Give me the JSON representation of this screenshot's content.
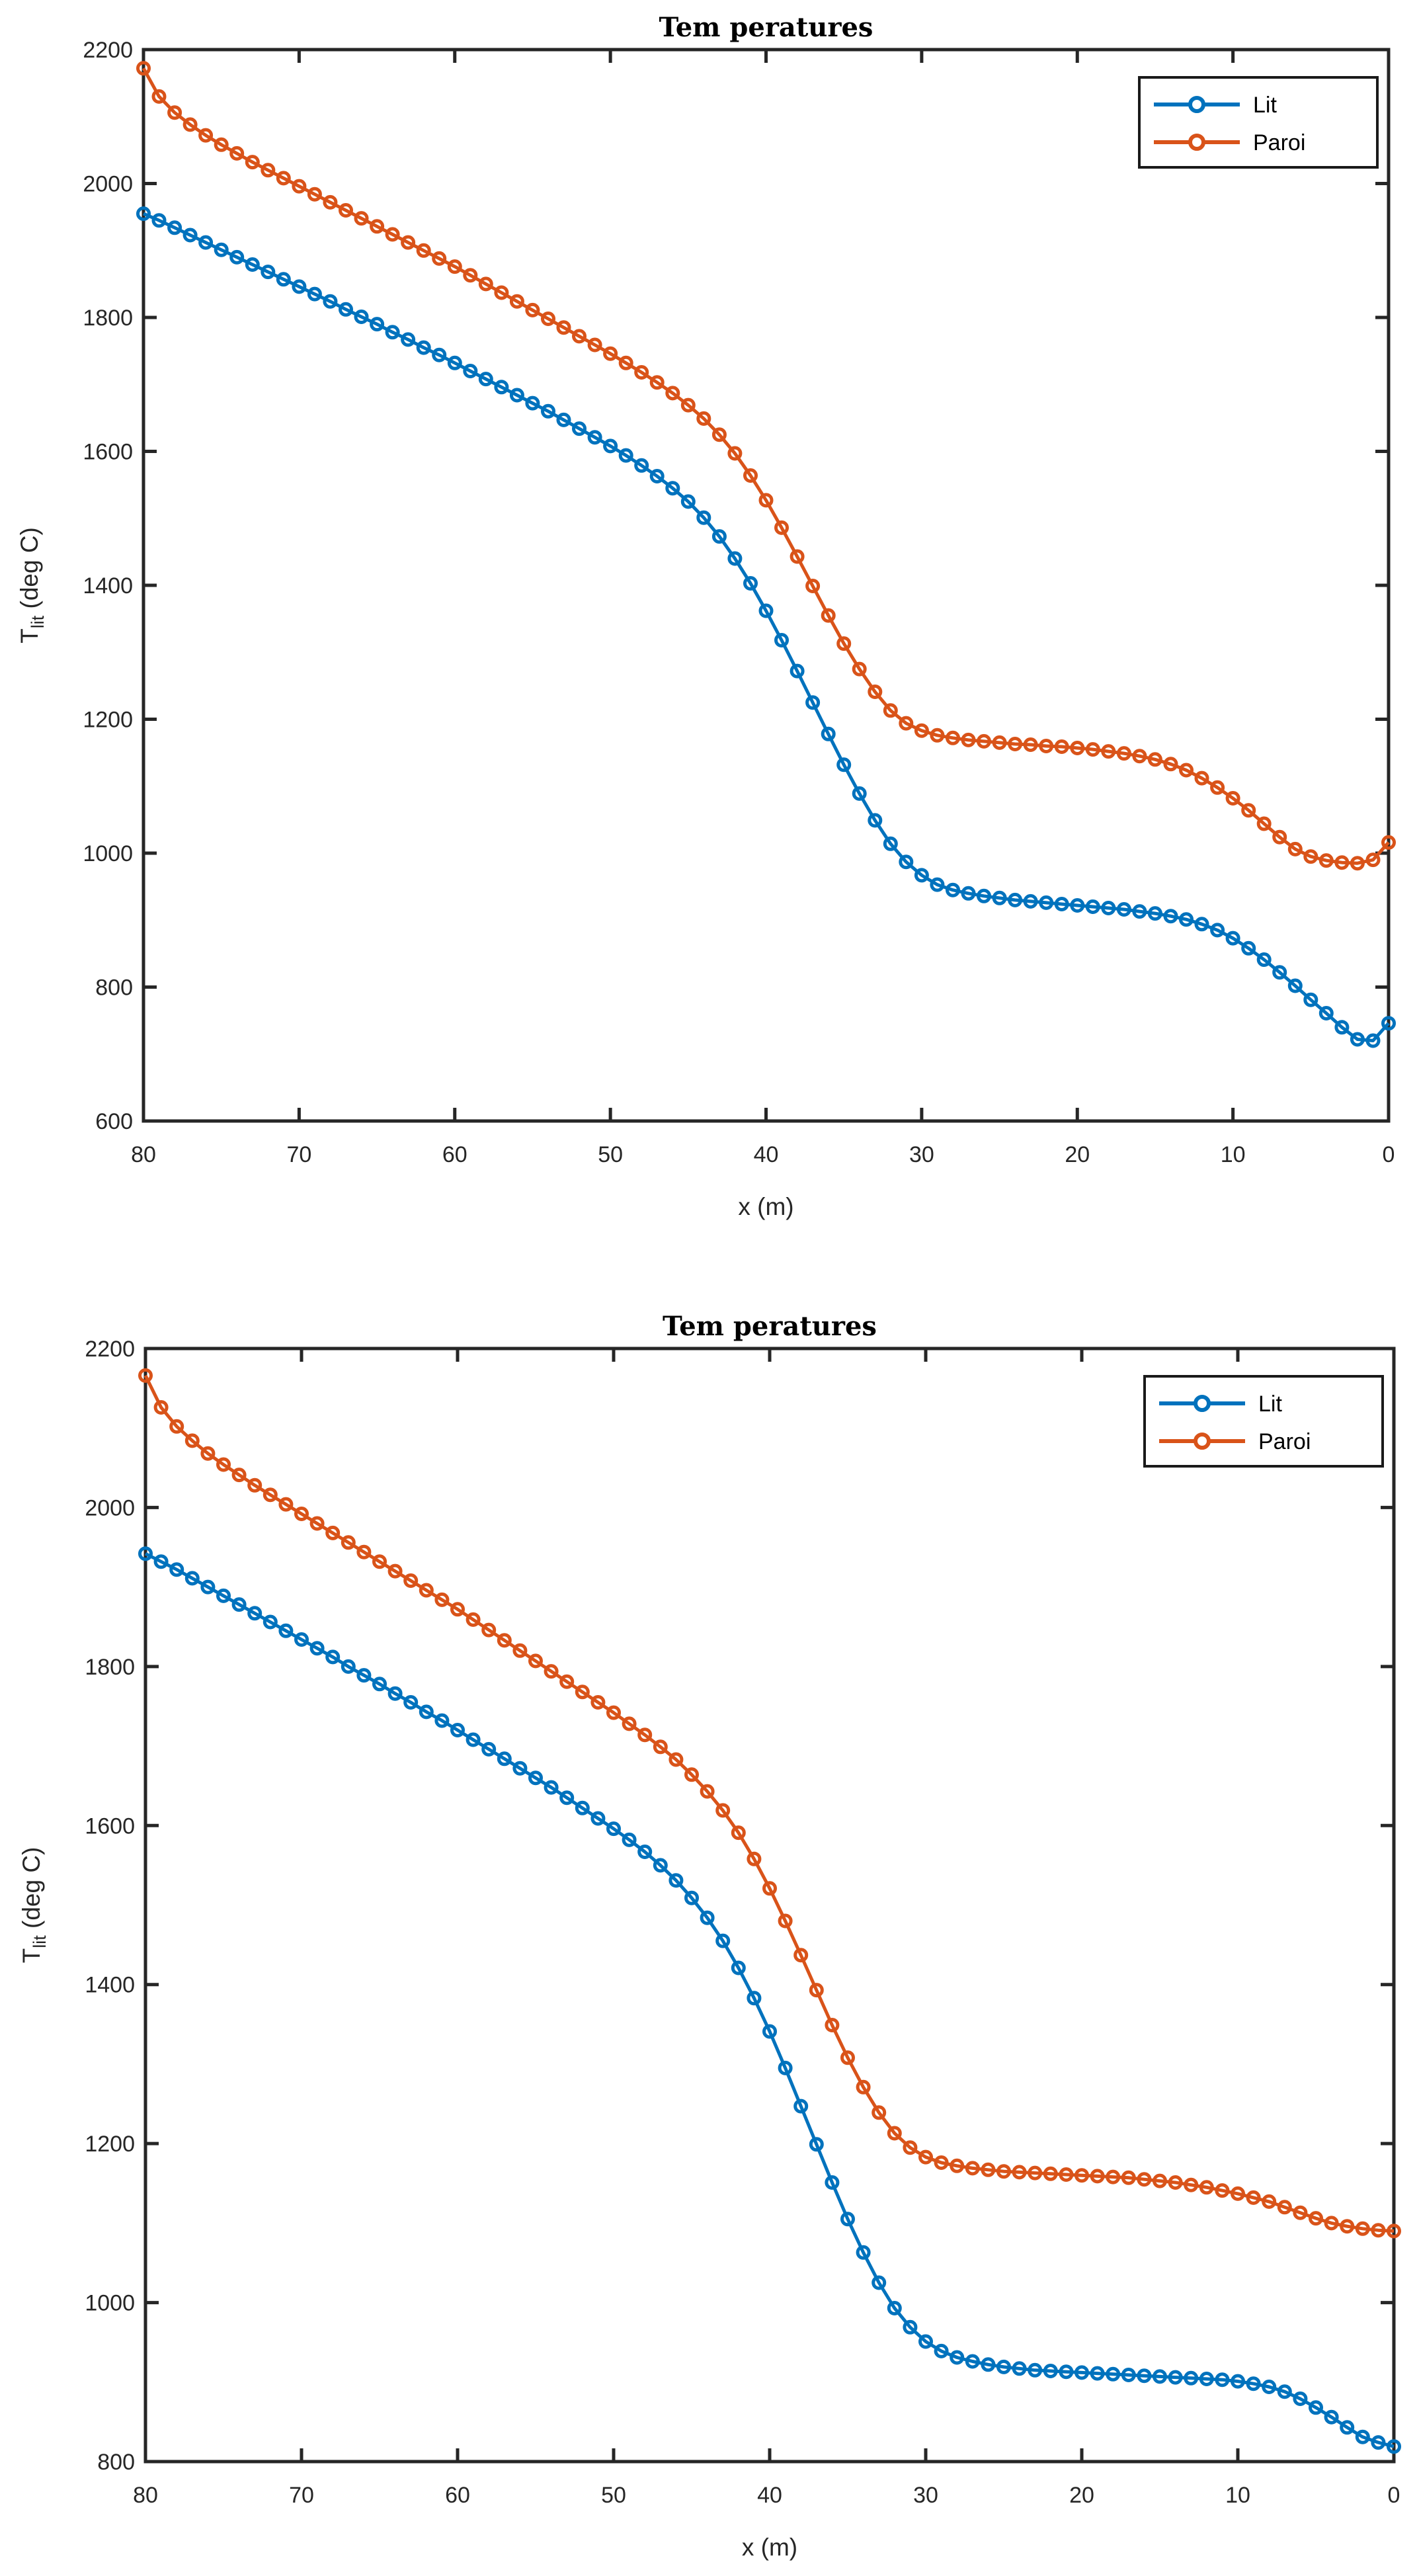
{
  "figure": {
    "background": "#ffffff"
  },
  "colors": {
    "lit": "#0072BD",
    "paroi": "#D95319",
    "axis": "#262626",
    "tick_text": "#262626",
    "title_text": "#000000",
    "legend_border": "#1a1a1a"
  },
  "chart_data": [
    {
      "type": "line",
      "title": "Tem peratures",
      "xlabel": "x (m)",
      "ylabel": {
        "main": "T",
        "sub": "lit",
        "rest": " (deg C)"
      },
      "x_axis_reversed": true,
      "xlim": [
        80,
        0
      ],
      "ylim": [
        600,
        2200
      ],
      "xticks": [
        80,
        70,
        60,
        50,
        40,
        30,
        20,
        10,
        0
      ],
      "yticks": [
        600,
        800,
        1000,
        1200,
        1400,
        1600,
        1800,
        2000,
        2200
      ],
      "grid": false,
      "legend_position": "top-right",
      "legend": [
        {
          "label": "Lit",
          "color": "#0072BD",
          "marker": "circle"
        },
        {
          "label": "Paroi",
          "color": "#D95319",
          "marker": "circle"
        }
      ],
      "x": [
        80,
        79,
        78,
        77,
        76,
        75,
        74,
        73,
        72,
        71,
        70,
        69,
        68,
        67,
        66,
        65,
        64,
        63,
        62,
        61,
        60,
        59,
        58,
        57,
        56,
        55,
        54,
        53,
        52,
        51,
        50,
        49,
        48,
        47,
        46,
        45,
        44,
        43,
        42,
        41,
        40,
        39,
        38,
        37,
        36,
        35,
        34,
        33,
        32,
        31,
        30,
        29,
        28,
        27,
        26,
        25,
        24,
        23,
        22,
        21,
        20,
        19,
        18,
        17,
        16,
        15,
        14,
        13,
        12,
        11,
        10,
        9,
        8,
        7,
        6,
        5,
        4,
        3,
        2,
        1,
        0
      ],
      "series": [
        {
          "name": "Lit",
          "color": "#0072BD",
          "y": [
            1955,
            1945,
            1934,
            1923,
            1912,
            1901,
            1890,
            1879,
            1868,
            1857,
            1846,
            1835,
            1824,
            1812,
            1801,
            1790,
            1778,
            1767,
            1755,
            1744,
            1732,
            1720,
            1708,
            1696,
            1684,
            1672,
            1660,
            1647,
            1634,
            1621,
            1608,
            1594,
            1579,
            1563,
            1545,
            1525,
            1501,
            1473,
            1440,
            1403,
            1362,
            1318,
            1272,
            1225,
            1178,
            1132,
            1089,
            1049,
            1014,
            987,
            967,
            953,
            945,
            940,
            936,
            933,
            930,
            928,
            926,
            924,
            922,
            920,
            918,
            916,
            913,
            910,
            906,
            901,
            894,
            885,
            873,
            858,
            841,
            822,
            802,
            781,
            761,
            740,
            722,
            720,
            746
          ]
        },
        {
          "name": "Paroi",
          "color": "#D95319",
          "y": [
            2172,
            2130,
            2106,
            2088,
            2072,
            2058,
            2045,
            2032,
            2020,
            2008,
            1996,
            1984,
            1972,
            1960,
            1948,
            1936,
            1924,
            1912,
            1900,
            1888,
            1876,
            1863,
            1850,
            1837,
            1824,
            1811,
            1798,
            1785,
            1772,
            1759,
            1746,
            1732,
            1718,
            1703,
            1687,
            1669,
            1649,
            1625,
            1597,
            1564,
            1527,
            1486,
            1443,
            1399,
            1355,
            1313,
            1275,
            1241,
            1213,
            1194,
            1183,
            1176,
            1172,
            1169,
            1167,
            1165,
            1163,
            1162,
            1160,
            1159,
            1157,
            1155,
            1152,
            1149,
            1145,
            1140,
            1133,
            1124,
            1112,
            1098,
            1082,
            1064,
            1044,
            1024,
            1006,
            995,
            989,
            986,
            985,
            990,
            1016
          ]
        }
      ]
    },
    {
      "type": "line",
      "title": "Tem peratures",
      "xlabel": "x (m)",
      "ylabel": {
        "main": "T",
        "sub": "lit",
        "rest": " (deg C)"
      },
      "x_axis_reversed": true,
      "xlim": [
        80,
        0
      ],
      "ylim": [
        800,
        2200
      ],
      "xticks": [
        80,
        70,
        60,
        50,
        40,
        30,
        20,
        10,
        0
      ],
      "yticks": [
        800,
        1000,
        1200,
        1400,
        1600,
        1800,
        2000,
        2200
      ],
      "grid": false,
      "legend_position": "top-right",
      "legend": [
        {
          "label": "Lit",
          "color": "#0072BD",
          "marker": "circle"
        },
        {
          "label": "Paroi",
          "color": "#D95319",
          "marker": "circle"
        }
      ],
      "x": [
        80,
        79,
        78,
        77,
        76,
        75,
        74,
        73,
        72,
        71,
        70,
        69,
        68,
        67,
        66,
        65,
        64,
        63,
        62,
        61,
        60,
        59,
        58,
        57,
        56,
        55,
        54,
        53,
        52,
        51,
        50,
        49,
        48,
        47,
        46,
        45,
        44,
        43,
        42,
        41,
        40,
        39,
        38,
        37,
        36,
        35,
        34,
        33,
        32,
        31,
        30,
        29,
        28,
        27,
        26,
        25,
        24,
        23,
        22,
        21,
        20,
        19,
        18,
        17,
        16,
        15,
        14,
        13,
        12,
        11,
        10,
        9,
        8,
        7,
        6,
        5,
        4,
        3,
        2,
        1,
        0
      ],
      "series": [
        {
          "name": "Lit",
          "color": "#0072BD",
          "y": [
            1942,
            1932,
            1922,
            1911,
            1900,
            1889,
            1878,
            1867,
            1856,
            1845,
            1834,
            1823,
            1812,
            1800,
            1789,
            1778,
            1766,
            1755,
            1743,
            1732,
            1720,
            1708,
            1696,
            1684,
            1672,
            1660,
            1648,
            1635,
            1622,
            1609,
            1596,
            1582,
            1567,
            1550,
            1531,
            1509,
            1484,
            1455,
            1421,
            1383,
            1341,
            1295,
            1247,
            1199,
            1151,
            1105,
            1063,
            1025,
            993,
            969,
            951,
            939,
            931,
            926,
            922,
            919,
            917,
            915,
            914,
            913,
            912,
            911,
            910,
            909,
            908,
            907,
            906,
            905,
            904,
            903,
            901,
            898,
            894,
            888,
            879,
            868,
            856,
            843,
            831,
            824,
            819
          ]
        },
        {
          "name": "Paroi",
          "color": "#D95319",
          "y": [
            2166,
            2126,
            2102,
            2084,
            2068,
            2054,
            2041,
            2028,
            2016,
            2004,
            1992,
            1980,
            1968,
            1956,
            1944,
            1932,
            1920,
            1908,
            1896,
            1884,
            1872,
            1859,
            1846,
            1833,
            1820,
            1807,
            1794,
            1781,
            1768,
            1755,
            1742,
            1728,
            1714,
            1699,
            1683,
            1664,
            1643,
            1619,
            1591,
            1558,
            1521,
            1480,
            1437,
            1393,
            1349,
            1308,
            1271,
            1239,
            1213,
            1195,
            1183,
            1176,
            1172,
            1169,
            1167,
            1165,
            1164,
            1163,
            1162,
            1161,
            1160,
            1159,
            1158,
            1157,
            1155,
            1153,
            1151,
            1148,
            1145,
            1141,
            1137,
            1132,
            1127,
            1120,
            1113,
            1106,
            1100,
            1096,
            1093,
            1091,
            1090
          ]
        }
      ]
    }
  ]
}
